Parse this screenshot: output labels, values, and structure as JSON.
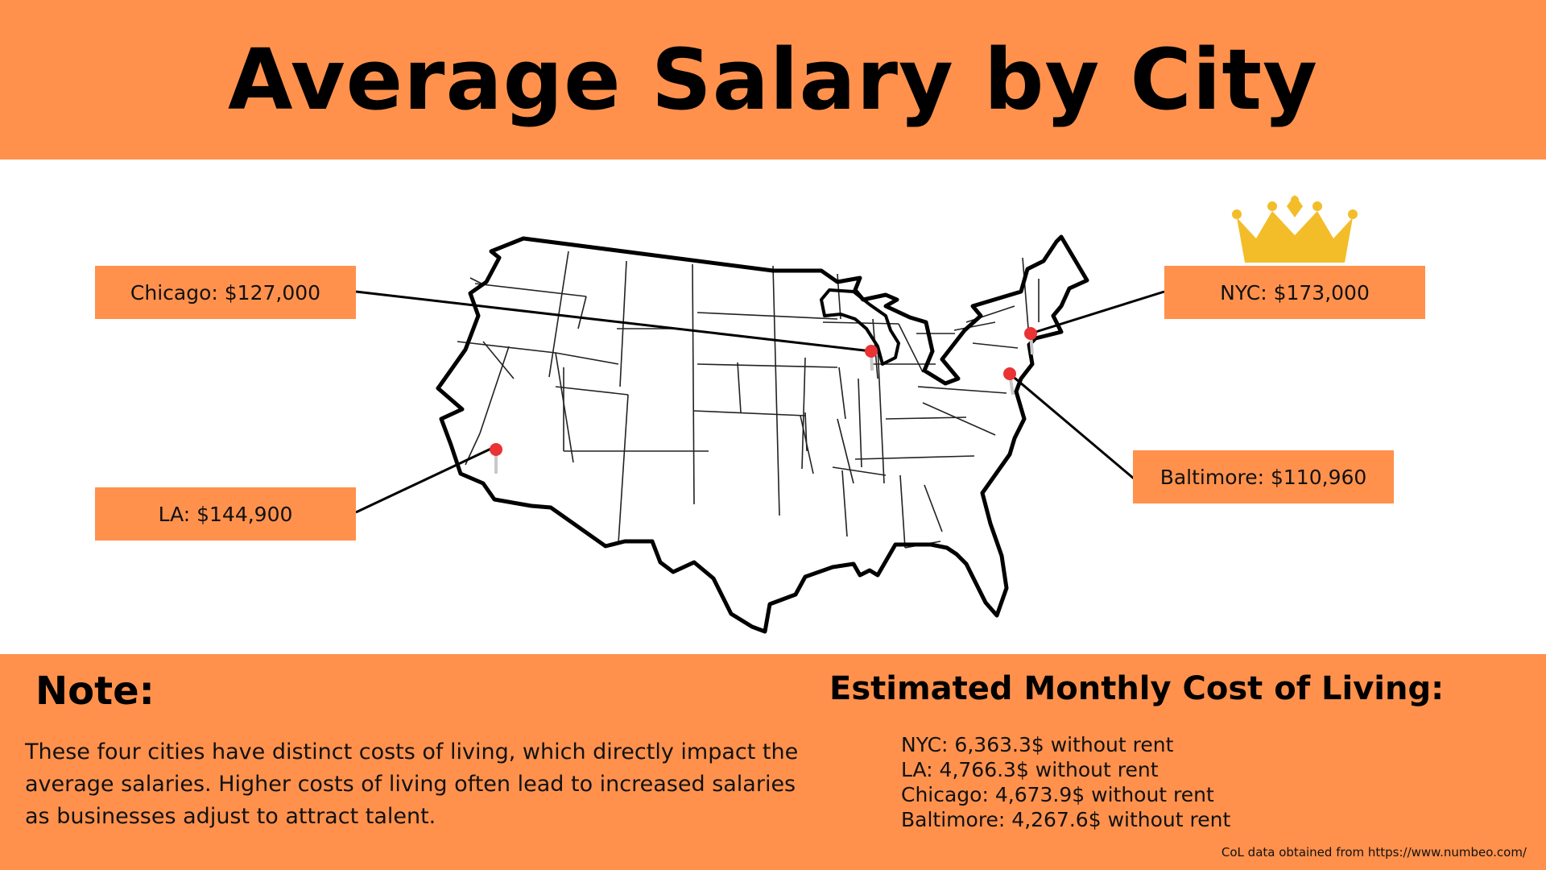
{
  "title": "Average Salary by City",
  "labels": {
    "chicago": "Chicago: $127,000",
    "la": "LA: $144,900",
    "nyc": "NYC: $173,000",
    "baltimore": "Baltimore: $110,960"
  },
  "note": {
    "heading": "Note:",
    "body": "These four cities have distinct costs of living, which directly impact the average salaries. Higher costs of living often lead to increased salaries as businesses adjust to attract talent."
  },
  "cost_of_living": {
    "heading": "Estimated Monthly Cost of Living:",
    "items": [
      "NYC: 6,363.3$ without rent",
      "LA: 4,766.3$ without rent",
      "Chicago: 4,673.9$ without rent",
      "Baltimore: 4,267.6$ without rent"
    ]
  },
  "source": "CoL data obtained from https://www.numbeo.com/",
  "colors": {
    "accent": "#ff914d",
    "pin": "#ea3334",
    "crown": "#f3bd2a"
  },
  "icons": [
    "crown-icon",
    "map-pin-icon"
  ]
}
